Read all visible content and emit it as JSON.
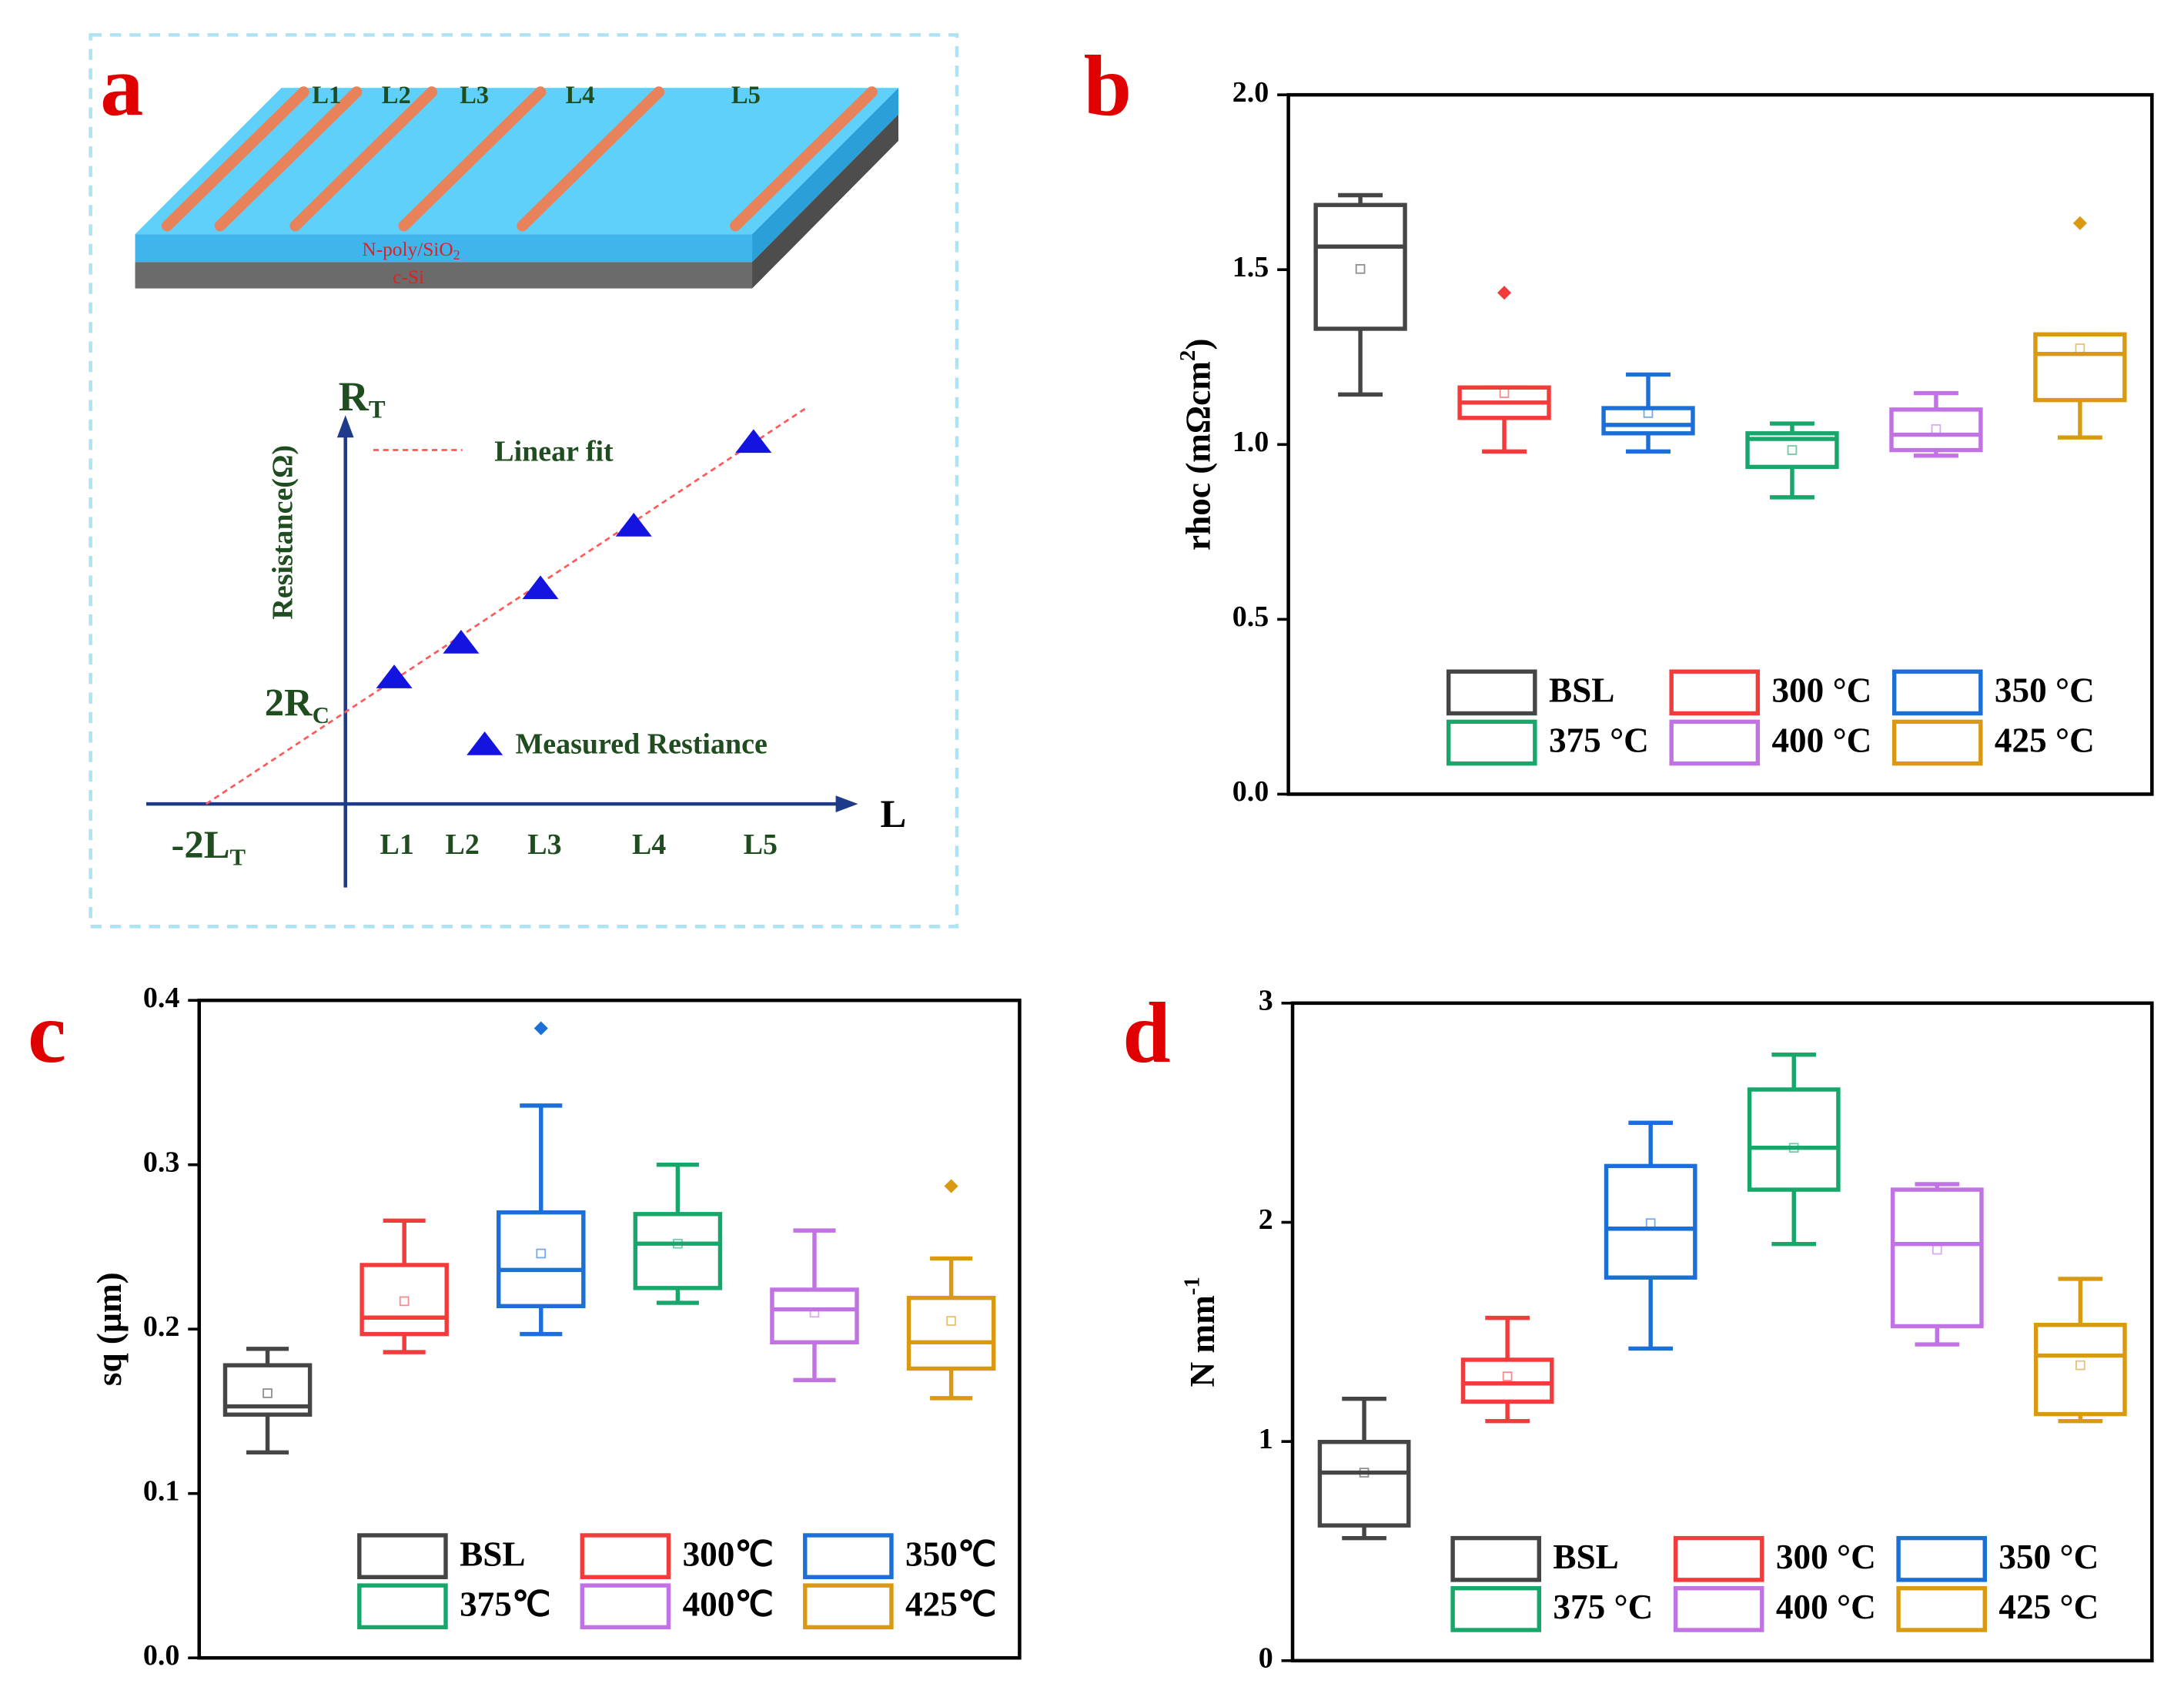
{
  "panel_labels": [
    "a",
    "b",
    "c",
    "d"
  ],
  "diagram": {
    "stripe_labels": [
      "L1",
      "L2",
      "L3",
      "L4",
      "L5"
    ],
    "layer_top": [
      "N-poly/SiO",
      "2"
    ],
    "layer_bottom": "c-Si",
    "y_symbol": [
      "R",
      "T"
    ],
    "y_label": "Resistance(Ω)",
    "fit_label": "Linear fit",
    "intercept_label": [
      "2R",
      "C"
    ],
    "marker_label": "Measured Restiance",
    "x_intercept_label": [
      "-2L",
      "T"
    ],
    "x_symbol": "L",
    "x_labels": [
      "L1",
      "L2",
      "L3",
      "L4",
      "L5"
    ]
  },
  "chart_data": [
    {
      "type": "box",
      "ylabel": {
        "text": "rhoc (mΩcm",
        "sup": "2",
        "tail": ")"
      },
      "ylim": [
        0,
        2
      ],
      "yticks": [
        {
          "value": 0,
          "label": "0.0"
        },
        0.5,
        {
          "value": 1,
          "label": "1.0"
        },
        1.5,
        {
          "value": 2,
          "label": "2.0"
        }
      ],
      "legend": "lower right",
      "series": [
        {
          "name": "BSL",
          "color": "#454545",
          "whislo": 1.143,
          "q1": 1.331,
          "med": 1.566,
          "q3": 1.685,
          "whishi": 1.713,
          "mean": 1.502
        },
        {
          "name": "300 °C",
          "color": "#f23c3c",
          "whislo": 0.98,
          "q1": 1.076,
          "med": 1.12,
          "q3": 1.163,
          "whishi": 1.163,
          "mean": 1.147,
          "fliers": [
            1.434
          ]
        },
        {
          "name": "350 °C",
          "color": "#1b6fd6",
          "whislo": 0.98,
          "q1": 1.032,
          "med": 1.056,
          "q3": 1.104,
          "whishi": 1.2,
          "mean": 1.09
        },
        {
          "name": "375 °C",
          "color": "#17a76b",
          "whislo": 0.849,
          "q1": 0.936,
          "med": 1.016,
          "q3": 1.032,
          "whishi": 1.06,
          "mean": 0.984
        },
        {
          "name": "400 °C",
          "color": "#c273e3",
          "whislo": 0.968,
          "q1": 0.984,
          "med": 1.028,
          "q3": 1.1,
          "whishi": 1.147,
          "mean": 1.044
        },
        {
          "name": "425 °C",
          "color": "#d99a12",
          "whislo": 1.02,
          "q1": 1.127,
          "med": 1.259,
          "q3": 1.315,
          "whishi": 1.315,
          "mean": 1.275,
          "fliers": [
            1.633
          ]
        }
      ]
    },
    {
      "type": "box",
      "ylabel": "sq (µm)",
      "ylim": [
        0,
        0.4
      ],
      "yticks": [
        {
          "value": 0,
          "label": "0.0"
        },
        0.1,
        0.2,
        0.3,
        0.4
      ],
      "legend": "lower right",
      "series": [
        {
          "name": "BSL",
          "color": "#454545",
          "whislo": 0.125,
          "q1": 0.148,
          "med": 0.153,
          "q3": 0.178,
          "whishi": 0.188,
          "mean": 0.161
        },
        {
          "name": "300℃",
          "color": "#f23c3c",
          "whislo": 0.186,
          "q1": 0.197,
          "med": 0.207,
          "q3": 0.239,
          "whishi": 0.266,
          "mean": 0.217
        },
        {
          "name": "350℃",
          "color": "#1b6fd6",
          "whislo": 0.197,
          "q1": 0.214,
          "med": 0.236,
          "q3": 0.271,
          "whishi": 0.336,
          "mean": 0.246,
          "fliers": [
            0.383
          ]
        },
        {
          "name": "375℃",
          "color": "#17a76b",
          "whislo": 0.216,
          "q1": 0.225,
          "med": 0.252,
          "q3": 0.27,
          "whishi": 0.3,
          "mean": 0.252
        },
        {
          "name": "400℃",
          "color": "#c273e3",
          "whislo": 0.169,
          "q1": 0.192,
          "med": 0.212,
          "q3": 0.224,
          "whishi": 0.26,
          "mean": 0.21
        },
        {
          "name": "425℃",
          "color": "#d99a12",
          "whislo": 0.158,
          "q1": 0.176,
          "med": 0.192,
          "q3": 0.219,
          "whishi": 0.243,
          "mean": 0.205,
          "fliers": [
            0.287
          ]
        }
      ]
    },
    {
      "type": "box",
      "ylabel": {
        "text": "N mm",
        "sup": "-1"
      },
      "ylim": [
        0,
        3
      ],
      "yticks": [
        0,
        1,
        2,
        3
      ],
      "legend": "lower right",
      "series": [
        {
          "name": "BSL",
          "color": "#454545",
          "whislo": 0.559,
          "q1": 0.617,
          "med": 0.858,
          "q3": 0.998,
          "whishi": 1.195,
          "mean": 0.858
        },
        {
          "name": "300 °C",
          "color": "#f23c3c",
          "whislo": 1.093,
          "q1": 1.182,
          "med": 1.265,
          "q3": 1.373,
          "whishi": 1.564,
          "mean": 1.297
        },
        {
          "name": "350 °C",
          "color": "#1b6fd6",
          "whislo": 1.424,
          "q1": 1.748,
          "med": 1.971,
          "q3": 2.257,
          "whishi": 2.454,
          "mean": 1.996
        },
        {
          "name": "375 °C",
          "color": "#17a76b",
          "whislo": 1.901,
          "q1": 2.149,
          "med": 2.34,
          "q3": 2.606,
          "whishi": 2.765,
          "mean": 2.34
        },
        {
          "name": "400 °C",
          "color": "#c273e3",
          "whislo": 1.443,
          "q1": 1.526,
          "med": 1.901,
          "q3": 2.149,
          "whishi": 2.174,
          "mean": 1.875
        },
        {
          "name": "425 °C",
          "color": "#d99a12",
          "whislo": 1.093,
          "q1": 1.125,
          "med": 1.392,
          "q3": 1.532,
          "whishi": 1.742,
          "mean": 1.348
        }
      ]
    }
  ]
}
